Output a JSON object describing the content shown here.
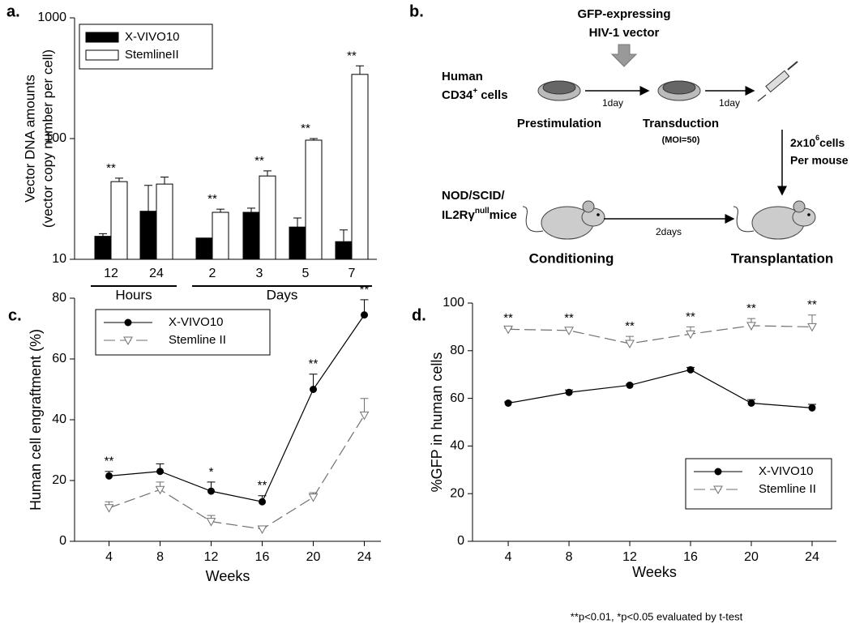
{
  "chart_data": [
    {
      "type": "bar",
      "panel": "a.",
      "ylabel": [
        "Vector DNA amounts",
        "(vector copy number per cell)"
      ],
      "log_scale": true,
      "categories": [
        "12",
        "24",
        "2",
        "3",
        "5",
        "7"
      ],
      "category_group": [
        "Hours",
        "Hours",
        "Days",
        "Days",
        "Days",
        "Days"
      ],
      "series": [
        {
          "name": "X-VIVO10",
          "color": "#000000",
          "values": [
            15.5,
            25,
            15,
            24.5,
            18.5,
            14
          ],
          "errors": [
            0.8,
            16,
            null,
            2,
            3.5,
            3.5
          ]
        },
        {
          "name": "StemlineII",
          "color": "#ffffff",
          "values": [
            44,
            42,
            24.5,
            49,
            97,
            340
          ],
          "errors": [
            3,
            6,
            1.5,
            5,
            3,
            60
          ]
        }
      ],
      "annotations": [
        "**",
        null,
        "**",
        "**",
        "**",
        "**"
      ],
      "ylim": [
        10,
        1000
      ],
      "yticks": [
        10,
        100,
        1000
      ],
      "legend": "upper-left"
    },
    {
      "type": "line",
      "panel": "c.",
      "xlabel": "Weeks",
      "ylabel": "Human cell engraftment (%)",
      "x": [
        4,
        8,
        12,
        16,
        20,
        24
      ],
      "series": [
        {
          "name": "X-VIVO10",
          "color": "#000000",
          "marker": "circle",
          "line": "solid",
          "values": [
            21.5,
            23,
            16.5,
            13,
            50,
            74.5
          ],
          "errors": [
            1.5,
            2.5,
            3,
            2,
            5,
            5
          ]
        },
        {
          "name": "Stemline II",
          "color": "#707070",
          "marker": "triangle-down",
          "line": "dashed",
          "values": [
            11,
            17,
            6.5,
            4,
            14.5,
            41.5
          ],
          "errors": [
            2,
            2.5,
            2,
            0.5,
            1.5,
            5.5
          ]
        }
      ],
      "annotations": [
        "**",
        null,
        "*",
        "**",
        "**",
        "**"
      ],
      "xlim": [
        1.3,
        25.3
      ],
      "xticks": [
        4,
        8,
        12,
        16,
        20,
        24
      ],
      "ylim": [
        0,
        80
      ],
      "yticks": [
        0,
        20,
        40,
        60,
        80
      ],
      "legend": "upper-left"
    },
    {
      "type": "line",
      "panel": "d.",
      "xlabel": "Weeks",
      "ylabel": "%GFP in human cells",
      "x": [
        4,
        8,
        12,
        16,
        20,
        24
      ],
      "series": [
        {
          "name": "X-VIVO10",
          "color": "#000000",
          "marker": "circle",
          "line": "solid",
          "values": [
            58,
            62.5,
            65.5,
            72,
            58,
            56
          ],
          "errors": [
            0.5,
            1,
            0.5,
            1,
            1.5,
            1.5
          ]
        },
        {
          "name": "Stemline II",
          "color": "#707070",
          "marker": "triangle-down",
          "line": "dashed",
          "values": [
            89,
            88.5,
            83,
            87,
            90.5,
            90
          ],
          "errors": [
            0.5,
            1,
            3,
            3,
            3,
            5
          ]
        }
      ],
      "annotations": [
        "**",
        "**",
        "**",
        "**",
        "**",
        "**"
      ],
      "xlim": [
        1.65,
        25.6
      ],
      "xticks": [
        4,
        8,
        12,
        16,
        20,
        24
      ],
      "ylim": [
        0,
        100
      ],
      "yticks": [
        0,
        20,
        40,
        60,
        80,
        100
      ],
      "legend": "lower-right"
    }
  ],
  "diagram": {
    "panel": "b.",
    "vector_line1": "GFP-expressing",
    "vector_line2": "HIV-1 vector",
    "source_line1": "Human",
    "source_base": "CD34",
    "source_sup": "+",
    "source_rest": "cells",
    "step1": "Prestimulation",
    "step2": "Transduction",
    "moi": "(MOI=50)",
    "interval1": "1day",
    "interval2": "1day",
    "dose_base": "2x10",
    "dose_sup": "6",
    "dose_rest": "cells",
    "dose_line2": "Per mouse",
    "mice_line1": "NOD/SCID/",
    "mice_base": "IL2Rγ",
    "mice_sup": "null",
    "mice_rest": "mice",
    "interval3": "2days",
    "step3": "Conditioning",
    "step4": "Transplantation"
  },
  "footnote": "**p<0.01, *p<0.05 evaluated by t-test"
}
